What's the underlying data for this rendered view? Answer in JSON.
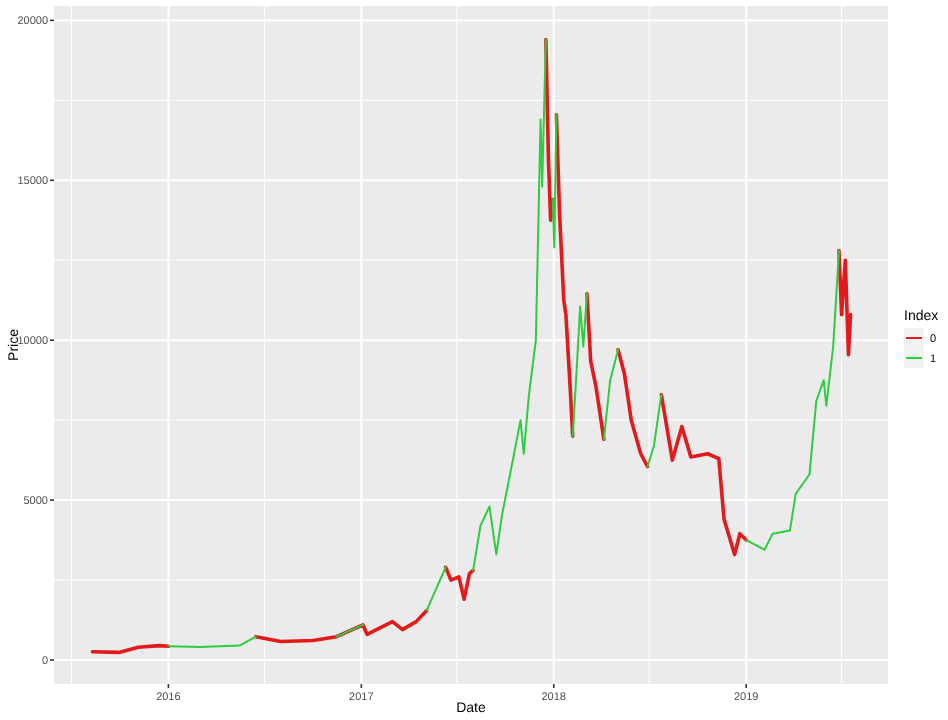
{
  "chart_data": {
    "type": "line",
    "xlabel": "Date",
    "ylabel": "Price",
    "legend_title": "Index",
    "legend": "right",
    "grid": true,
    "line_style": "solid",
    "xlim": [
      "2015-05-29",
      "2019-09-27"
    ],
    "ylim": [
      -750,
      20450
    ],
    "xticks": [
      {
        "value": "2015-07-01",
        "label": null
      },
      {
        "value": "2016-01-01",
        "label": "2016"
      },
      {
        "value": "2016-07-01",
        "label": null
      },
      {
        "value": "2017-01-01",
        "label": "2017"
      },
      {
        "value": "2017-07-01",
        "label": null
      },
      {
        "value": "2018-01-01",
        "label": "2018"
      },
      {
        "value": "2018-07-01",
        "label": null
      },
      {
        "value": "2019-01-01",
        "label": "2019"
      },
      {
        "value": "2019-07-01",
        "label": null
      }
    ],
    "yticks": [
      0,
      {
        "value": 2500,
        "label": null
      },
      5000,
      {
        "value": 7500,
        "label": null
      },
      10000,
      {
        "value": 12500,
        "label": null
      },
      15000,
      {
        "value": 17500,
        "label": null
      },
      20000
    ],
    "x": [
      "2015-08-10",
      "2015-10-01",
      "2015-11-05",
      "2015-12-15",
      "2016-01-01",
      "2016-03-01",
      "2016-05-15",
      "2016-06-15",
      "2016-08-01",
      "2016-10-01",
      "2016-11-15",
      "2017-01-04",
      "2017-01-12",
      "2017-03-01",
      "2017-03-20",
      "2017-04-15",
      "2017-05-05",
      "2017-05-25",
      "2017-06-10",
      "2017-06-20",
      "2017-07-05",
      "2017-07-15",
      "2017-07-25",
      "2017-08-01",
      "2017-08-15",
      "2017-09-01",
      "2017-09-14",
      "2017-09-25",
      "2017-10-10",
      "2017-10-30",
      "2017-11-05",
      "2017-11-15",
      "2017-11-28",
      "2017-12-07",
      "2017-12-10",
      "2017-12-17",
      "2017-12-22",
      "2017-12-26",
      "2017-12-30",
      "2018-01-02",
      "2018-01-06",
      "2018-01-12",
      "2018-01-20",
      "2018-01-24",
      "2018-02-01",
      "2018-02-06",
      "2018-02-13",
      "2018-02-20",
      "2018-02-26",
      "2018-03-05",
      "2018-03-12",
      "2018-03-22",
      "2018-04-06",
      "2018-04-18",
      "2018-05-03",
      "2018-05-15",
      "2018-05-28",
      "2018-06-15",
      "2018-06-28",
      "2018-07-10",
      "2018-07-24",
      "2018-08-14",
      "2018-09-01",
      "2018-09-18",
      "2018-10-20",
      "2018-11-10",
      "2018-11-20",
      "2018-12-10",
      "2018-12-20",
      "2019-01-01",
      "2019-02-05",
      "2019-02-20",
      "2019-03-25",
      "2019-04-05",
      "2019-05-01",
      "2019-05-14",
      "2019-05-28",
      "2019-06-02",
      "2019-06-15",
      "2019-06-26",
      "2019-07-01",
      "2019-07-08",
      "2019-07-14",
      "2019-07-18"
    ],
    "series": [
      {
        "name": "0",
        "color": "#e31a1c",
        "values": [
          260,
          240,
          400,
          450,
          430,
          null,
          null,
          730,
          580,
          610,
          730,
          1100,
          800,
          1200,
          950,
          1200,
          1550,
          null,
          2900,
          2500,
          2600,
          1900,
          2700,
          2800,
          null,
          null,
          null,
          null,
          null,
          null,
          null,
          null,
          null,
          null,
          null,
          19400,
          15600,
          13750,
          14400,
          null,
          17050,
          13950,
          11250,
          10800,
          8550,
          7000,
          null,
          null,
          null,
          11450,
          9350,
          8550,
          6900,
          null,
          9700,
          8950,
          7500,
          6450,
          6050,
          null,
          8300,
          6250,
          7300,
          6350,
          6450,
          6300,
          4400,
          3300,
          3950,
          3750,
          null,
          null,
          null,
          null,
          null,
          null,
          null,
          null,
          null,
          12800,
          10800,
          12500,
          9550,
          10800
        ]
      },
      {
        "name": "1",
        "color": "#2ecc40",
        "values": [
          null,
          null,
          null,
          null,
          430,
          410,
          450,
          730,
          null,
          null,
          730,
          1100,
          null,
          null,
          null,
          null,
          1550,
          2300,
          2900,
          null,
          null,
          null,
          null,
          2800,
          4200,
          4800,
          3300,
          4550,
          5800,
          7500,
          6450,
          8300,
          10000,
          16900,
          14800,
          19400,
          null,
          null,
          14400,
          12900,
          17050,
          null,
          null,
          null,
          null,
          7000,
          8950,
          11050,
          9800,
          11450,
          null,
          null,
          6900,
          8750,
          9700,
          null,
          null,
          null,
          6050,
          6700,
          8300,
          null,
          null,
          null,
          null,
          null,
          null,
          null,
          null,
          3750,
          3450,
          3950,
          4050,
          5200,
          5800,
          8100,
          8750,
          7950,
          9800,
          12800,
          null,
          null,
          null,
          null
        ]
      }
    ]
  }
}
